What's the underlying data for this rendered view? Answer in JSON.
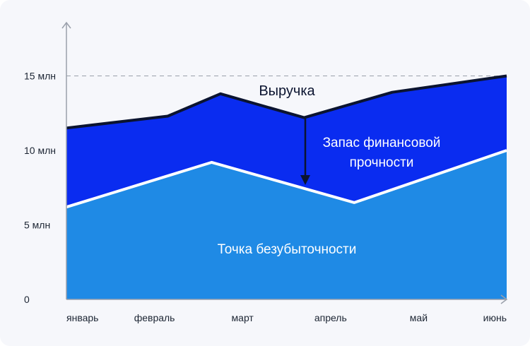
{
  "chart_data": {
    "type": "area",
    "categories": [
      "январь",
      "февраль",
      "март",
      "апрель",
      "май",
      "июнь"
    ],
    "x_points": [
      0,
      1.15,
      1.75,
      2.7,
      3.7,
      4.15,
      5
    ],
    "series": [
      {
        "name": "Выручка",
        "values": [
          11.5,
          12.3,
          13.8,
          12.2,
          13.9,
          15.0
        ],
        "color": "#0a2cf0"
      },
      {
        "name": "Точка безубыточности",
        "values": [
          6.2,
          8.3,
          9.2,
          7.4,
          6.5,
          10.0
        ],
        "color": "#1f8ae5"
      }
    ],
    "revenue_points": [
      {
        "x": 0,
        "y": 11.5
      },
      {
        "x": 1.15,
        "y": 12.3
      },
      {
        "x": 1.75,
        "y": 13.8
      },
      {
        "x": 2.7,
        "y": 12.2
      },
      {
        "x": 3.7,
        "y": 13.9
      },
      {
        "x": 5,
        "y": 15.0
      }
    ],
    "breakeven_points": [
      {
        "x": 0,
        "y": 6.2
      },
      {
        "x": 1.65,
        "y": 9.2
      },
      {
        "x": 3.27,
        "y": 6.5
      },
      {
        "x": 5,
        "y": 10.0
      }
    ],
    "y_ticks": [
      {
        "value": 0,
        "label": "0"
      },
      {
        "value": 5,
        "label": "5 млн"
      },
      {
        "value": 10,
        "label": "10 млн"
      },
      {
        "value": 15,
        "label": "15 млн"
      }
    ],
    "ylim": [
      0,
      19
    ],
    "reference_line": 15,
    "annotations": {
      "revenue_label": "Выручка",
      "safety_margin_line1": "Запас финансовой",
      "safety_margin_line2": "прочности",
      "breakeven_label": "Точка безубыточности"
    },
    "colors": {
      "revenue_fill": "#0a2cf0",
      "breakeven_fill": "#1f8ae5",
      "revenue_line": "#0b1430",
      "breakeven_line": "#ffffff",
      "axis": "#9aa0ab",
      "reference_line": "#9aa0ab"
    }
  }
}
